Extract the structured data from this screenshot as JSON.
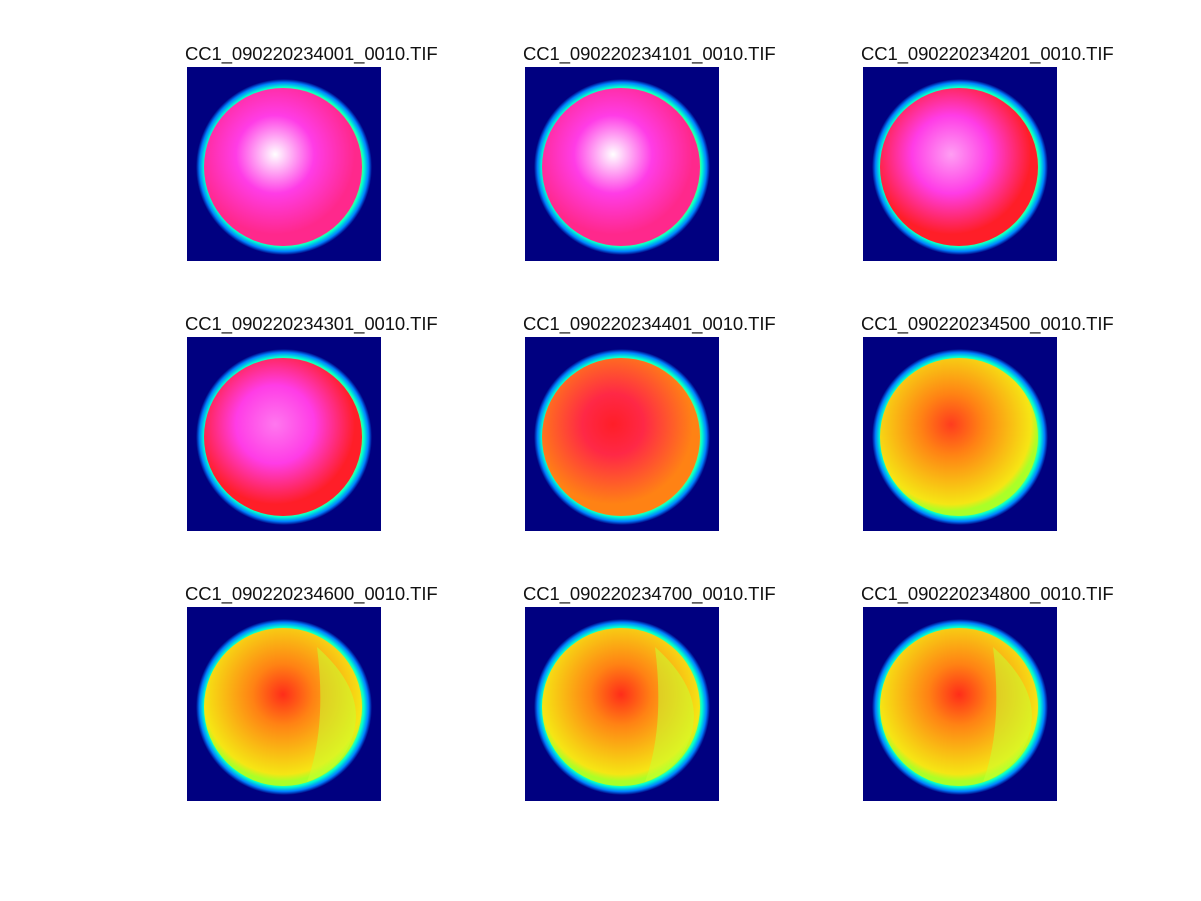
{
  "figure": {
    "panels": [
      {
        "title": "CC1_090220234001_0010.TIF",
        "brightness": 1.0
      },
      {
        "title": "CC1_090220234101_0010.TIF",
        "brightness": 0.98
      },
      {
        "title": "CC1_090220234201_0010.TIF",
        "brightness": 0.88
      },
      {
        "title": "CC1_090220234301_0010.TIF",
        "brightness": 0.8
      },
      {
        "title": "CC1_090220234401_0010.TIF",
        "brightness": 0.66
      },
      {
        "title": "CC1_090220234500_0010.TIF",
        "brightness": 0.52
      },
      {
        "title": "CC1_090220234600_0010.TIF",
        "brightness": 0.45
      },
      {
        "title": "CC1_090220234700_0010.TIF",
        "brightness": 0.43
      },
      {
        "title": "CC1_090220234800_0010.TIF",
        "brightness": 0.43
      }
    ],
    "colormap": "hsv-like: dark blue background, cyan/green rim, yellow/orange/red/magenta/white interior",
    "background_color": "#000080"
  }
}
